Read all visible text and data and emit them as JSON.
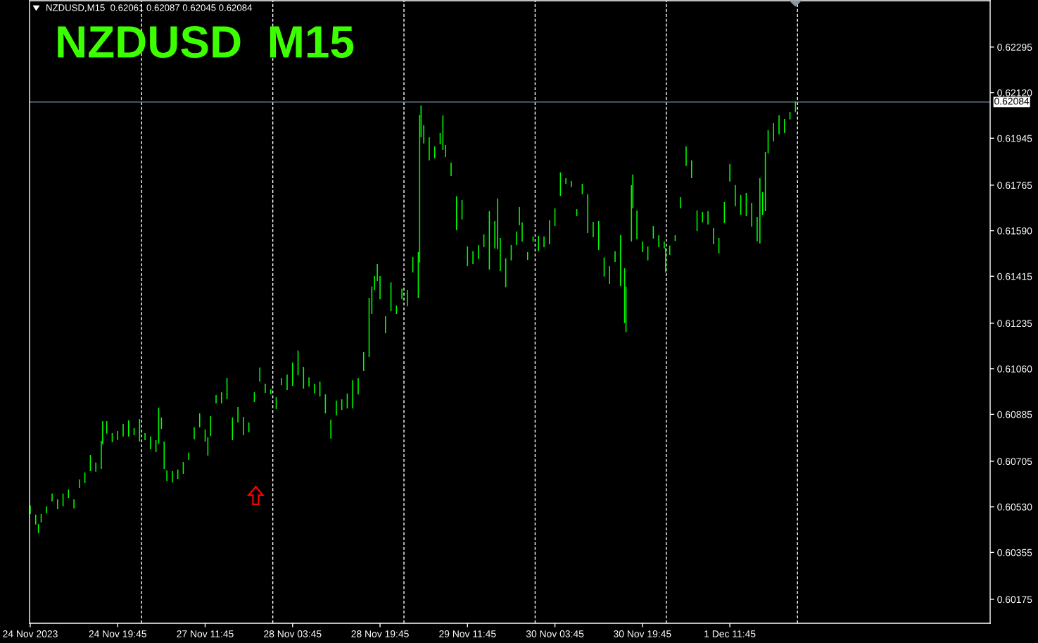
{
  "chart_data": {
    "type": "bar",
    "title": "NZDUSD  M15",
    "subtitle": "NZDUSD,M15  0.62061 0.62087 0.62045 0.62084",
    "color": "#00ff00",
    "categories": [
      "24 Nov 2023",
      null,
      null,
      null,
      null,
      null,
      null,
      null,
      null,
      null,
      null,
      null,
      null,
      null,
      null,
      null,
      null,
      null,
      null,
      null,
      null,
      null,
      null,
      null,
      null,
      null,
      null,
      null,
      null,
      null,
      null,
      null,
      null,
      null,
      null,
      null,
      null,
      null,
      null,
      null,
      null,
      null,
      null,
      null,
      null,
      null,
      null,
      null,
      null,
      null,
      null,
      null,
      null,
      null,
      null,
      null,
      null,
      null,
      null,
      null,
      null,
      null,
      null,
      null,
      "24 Nov 19:45",
      null,
      null,
      null,
      null,
      null,
      null,
      null,
      null,
      null,
      null,
      null,
      null,
      null,
      null,
      null,
      null,
      null,
      null,
      null,
      null,
      null,
      null,
      null,
      null,
      null,
      null,
      null,
      null,
      null,
      null,
      null,
      null,
      null,
      null,
      null,
      null,
      null,
      null,
      null,
      null,
      null,
      null,
      null,
      null,
      null,
      null,
      null,
      null,
      null,
      null,
      null,
      null,
      null,
      null,
      null,
      null,
      null,
      null,
      null,
      null,
      null,
      null,
      null,
      "27 Nov 11:45",
      null,
      null,
      null,
      null,
      null,
      null,
      null,
      null,
      null,
      null,
      null,
      null,
      null,
      null,
      null,
      null,
      null,
      null,
      null,
      null,
      null,
      null,
      null,
      null,
      null,
      null,
      null,
      null,
      null,
      null,
      null,
      null,
      null,
      null,
      null,
      null,
      null,
      null,
      null,
      null,
      null,
      null,
      null,
      null,
      null,
      null,
      null,
      null,
      null,
      null,
      null,
      null,
      null,
      null,
      null,
      null,
      null,
      null,
      null,
      null,
      null,
      null,
      null,
      "28 Nov 03:45",
      null,
      null,
      null,
      null,
      null,
      null,
      null,
      null,
      null,
      null,
      null,
      null,
      null,
      null,
      null,
      null,
      null,
      null,
      null,
      null,
      null,
      null,
      null,
      null,
      null,
      null,
      null,
      null,
      null,
      null,
      null,
      null,
      null,
      null,
      null,
      null,
      null,
      null,
      null,
      null,
      null,
      null,
      null,
      null,
      null,
      null,
      null,
      null,
      null,
      null,
      null,
      null,
      null,
      null,
      null,
      null,
      null,
      null,
      null,
      null,
      null,
      null,
      null,
      "28 Nov 19:45",
      null,
      null,
      null,
      null,
      null,
      null,
      null,
      null,
      null,
      null,
      null,
      null,
      null,
      null,
      null,
      null,
      null,
      null,
      null,
      null,
      null,
      null,
      null,
      null,
      null,
      null,
      null,
      null,
      null,
      null,
      null,
      null,
      null,
      null,
      null,
      null,
      null,
      null,
      null,
      null,
      null,
      null,
      null,
      null,
      null,
      null,
      null,
      null,
      null,
      null,
      null,
      null,
      null,
      null,
      null,
      null,
      null,
      null,
      null,
      null,
      null,
      null,
      null,
      "29 Nov 11:45",
      null,
      null,
      null,
      null,
      null,
      null,
      null,
      null,
      null,
      null,
      null,
      null,
      null,
      null,
      null,
      null,
      null,
      null,
      null,
      null,
      null,
      null,
      null,
      null,
      null,
      null,
      null,
      null,
      null,
      null,
      null,
      null,
      null,
      null,
      null,
      null,
      null,
      null,
      null,
      null,
      null,
      null,
      null,
      null,
      null,
      null,
      null,
      null,
      null,
      null,
      null,
      null,
      null,
      null,
      null,
      null,
      null,
      null,
      null,
      null,
      null,
      null,
      null,
      "30 Nov 03:45",
      null,
      null,
      null,
      null,
      null,
      null,
      null,
      null,
      null,
      null,
      null,
      null,
      null,
      null,
      null,
      null,
      null,
      null,
      null,
      null,
      null,
      null,
      null,
      null,
      null,
      null,
      null,
      null,
      null,
      null,
      null,
      null,
      null,
      null,
      null,
      null,
      null,
      null,
      null,
      null,
      null,
      null,
      null,
      null,
      null,
      null,
      null,
      null,
      null,
      null,
      null,
      null,
      null,
      null,
      null,
      null,
      null,
      null,
      null,
      null,
      null,
      null,
      null,
      "30 Nov 19:45",
      null,
      null,
      null,
      null,
      null,
      null,
      null,
      null,
      null,
      null,
      null,
      null,
      null,
      null,
      null,
      null,
      null,
      null,
      null,
      null,
      null,
      null,
      null,
      null,
      null,
      null,
      null,
      null,
      null,
      null,
      null,
      null,
      null,
      null,
      null,
      null,
      null,
      null,
      null,
      null,
      null,
      null,
      null,
      null,
      null,
      null,
      null,
      null,
      null,
      null,
      null,
      null,
      null,
      null,
      null,
      null,
      null,
      null,
      null,
      null,
      null,
      null,
      null,
      "1 Dec 11:45",
      null,
      null,
      null,
      null,
      null,
      null,
      null,
      null,
      null,
      null,
      null,
      null,
      null,
      null,
      null,
      null,
      null,
      null,
      null,
      null,
      null,
      null,
      null,
      null,
      null,
      null,
      null,
      null,
      null,
      null,
      null,
      null,
      null,
      null,
      null,
      null,
      null,
      null,
      null,
      null,
      null,
      null,
      null,
      null,
      null,
      null,
      null,
      null,
      null,
      null,
      null,
      null,
      null,
      null,
      null,
      null,
      null,
      null,
      null,
      null,
      null,
      null,
      null,
      null,
      null,
      null,
      null,
      null,
      null,
      null,
      null,
      null,
      null,
      null,
      null,
      null,
      null,
      null,
      null,
      null,
      null,
      null,
      null,
      null,
      null,
      null,
      null,
      null,
      null,
      null,
      null,
      null,
      null,
      null,
      null,
      null,
      null,
      null,
      null,
      null,
      null,
      null,
      null,
      null,
      null,
      null,
      null,
      null,
      null,
      null,
      null,
      null,
      null,
      null,
      null,
      null,
      null,
      null,
      null,
      null,
      null,
      null,
      null,
      null,
      null,
      null,
      null,
      null,
      null,
      null,
      null,
      null,
      null,
      null,
      null,
      null,
      null,
      null,
      null,
      null,
      null,
      null,
      null,
      null,
      null,
      null,
      null,
      null,
      null,
      null,
      null,
      null,
      null,
      null,
      null,
      null,
      null,
      null,
      null,
      null,
      null,
      null,
      null,
      null,
      null,
      null,
      null,
      null,
      null,
      null,
      null,
      null,
      null,
      null,
      null,
      null,
      null,
      null,
      null,
      null,
      null,
      null,
      null,
      null,
      null,
      null,
      null,
      null,
      null,
      null
    ],
    "base": [
      0.60502,
      null,
      null,
      null,
      0.60462,
      null,
      0.60429,
      null,
      0.6047,
      null,
      null,
      null,
      0.60505,
      null,
      null,
      null,
      0.60551,
      null,
      null,
      null,
      0.60521,
      null,
      null,
      null,
      0.60532,
      null,
      null,
      null,
      0.60564,
      null,
      null,
      null,
      0.60524,
      null,
      null,
      null,
      0.60602,
      null,
      null,
      null,
      0.60621,
      null,
      null,
      null,
      0.60667,
      null,
      null,
      null,
      0.60665,
      null,
      null,
      null,
      0.60675,
      0.6077,
      null,
      null,
      0.60811,
      null,
      null,
      null,
      0.60778,
      null,
      null,
      null,
      0.60786,
      null,
      null,
      null,
      0.608,
      null,
      null,
      null,
      0.608,
      null,
      null,
      null,
      0.60805,
      null,
      null,
      null,
      0.60781,
      null,
      null,
      null,
      0.60786,
      null,
      null,
      null,
      0.60751,
      null,
      null,
      null,
      0.6074,
      null,
      0.60773,
      null,
      0.60829,
      null,
      0.60675,
      null,
      0.60629,
      null,
      null,
      null,
      0.60624,
      null,
      null,
      null,
      0.60637,
      null,
      null,
      null,
      0.60656,
      null,
      null,
      null,
      0.6071,
      null,
      null,
      null,
      0.60789,
      null,
      null,
      null,
      0.60835,
      null,
      null,
      null,
      0.60781,
      null,
      0.60727,
      null,
      0.60802,
      null,
      null,
      null,
      0.60927,
      null,
      null,
      null,
      0.60927,
      null,
      null,
      null,
      0.60943,
      null,
      null,
      null,
      0.60786,
      null,
      null,
      null,
      0.60854,
      null,
      null,
      null,
      0.60805,
      null,
      null,
      null,
      0.60816,
      null,
      null,
      null,
      0.60932,
      null,
      null,
      null,
      0.61011,
      null,
      null,
      null,
      0.60967,
      null,
      null,
      null,
      0.60962,
      null,
      null,
      null,
      0.60905,
      null,
      null,
      null,
      0.60997,
      null,
      null,
      null,
      0.60978,
      null,
      null,
      null,
      0.60994,
      null,
      null,
      null,
      0.61035,
      null,
      null,
      null,
      0.60984,
      null,
      null,
      null,
      0.60992,
      null,
      null,
      null,
      0.60965,
      null,
      null,
      null,
      0.60954,
      null,
      null,
      null,
      0.60889,
      null,
      null,
      null,
      0.60792,
      null,
      null,
      null,
      0.60881,
      null,
      null,
      null,
      0.60902,
      null,
      null,
      null,
      0.60908,
      null,
      null,
      null,
      0.60908,
      null,
      null,
      null,
      0.60962,
      null,
      null,
      null,
      0.61051,
      null,
      null,
      null,
      0.61105,
      null,
      0.6127,
      null,
      0.61362,
      null,
      0.61397,
      null,
      0.61327,
      null,
      null,
      null,
      0.61197,
      null,
      null,
      null,
      0.61281,
      null,
      null,
      null,
      0.6127,
      null,
      null,
      null,
      0.61327,
      null,
      null,
      null,
      0.613,
      null,
      null,
      null,
      0.6143,
      null,
      null,
      null,
      0.61332,
      0.61468,
      0.61949,
      null,
      0.61925,
      null,
      null,
      null,
      0.6186,
      null,
      null,
      null,
      0.61868,
      null,
      null,
      null,
      0.61922,
      null,
      0.619,
      null,
      0.61873,
      null,
      null,
      null,
      0.618,
      null,
      null,
      null,
      0.61592,
      null,
      null,
      null,
      0.61633,
      null,
      null,
      null,
      0.61454,
      null,
      null,
      null,
      0.61462,
      null,
      null,
      null,
      0.61481,
      null,
      null,
      null,
      0.61527,
      null,
      null,
      null,
      0.61441,
      null,
      null,
      null,
      0.61522,
      null,
      0.61519,
      null,
      0.61435,
      null,
      null,
      null,
      0.61373,
      null,
      null,
      null,
      0.61476,
      null,
      null,
      null,
      0.61535,
      null,
      0.61611,
      null,
      0.61549,
      null,
      null,
      null,
      0.61478,
      null,
      null,
      null,
      0.61549,
      null,
      null,
      null,
      0.61511,
      null,
      null,
      null,
      0.61527,
      null,
      null,
      null,
      0.61538,
      null,
      null,
      null,
      0.61608,
      null,
      null,
      null,
      0.61724,
      null,
      null,
      null,
      0.6177,
      null,
      null,
      null,
      0.61757,
      null,
      null,
      null,
      0.61646,
      null,
      null,
      null,
      0.6173,
      null,
      null,
      null,
      0.61581,
      null,
      null,
      null,
      0.61565,
      null,
      null,
      null,
      0.61516,
      null,
      null,
      null,
      0.61414,
      null,
      null,
      null,
      0.61386,
      null,
      null,
      null,
      0.6147,
      null,
      null,
      null,
      0.61378,
      null,
      null,
      0.61235,
      0.612,
      null,
      null,
      null,
      0.61549,
      0.61676,
      null,
      null,
      0.61557,
      null,
      null,
      null,
      0.61508,
      null,
      null,
      null,
      0.61476,
      null,
      null,
      null,
      0.6156,
      null,
      null,
      null,
      0.61527,
      null,
      null,
      null,
      0.61522,
      0.6143,
      null,
      null,
      0.61497,
      null,
      null,
      null,
      0.61551,
      null,
      null,
      null,
      0.61676,
      null,
      null,
      null,
      0.61838,
      null,
      null,
      null,
      0.61792,
      null,
      null,
      null,
      0.61589,
      null,
      null,
      null,
      0.61622,
      null,
      null,
      null,
      0.61614,
      null,
      null,
      null,
      0.61538,
      null,
      null,
      null,
      0.61503,
      null,
      null,
      null,
      0.61619,
      null,
      null,
      null,
      0.61779,
      null,
      null,
      null,
      0.61684,
      null,
      null,
      null,
      0.61651,
      null,
      null,
      null,
      0.61646,
      null,
      null,
      null,
      0.61606,
      null,
      null,
      null,
      0.61549,
      null,
      0.61541,
      null,
      0.61651,
      null,
      0.61665,
      null,
      0.61887,
      null,
      null,
      null,
      0.61933,
      null,
      null,
      null,
      0.6196,
      null,
      null,
      null,
      0.61965,
      null,
      null,
      null,
      0.62017,
      null,
      null,
      null,
      0.62045,
      null,
      null,
      null,
      null,
      null,
      null,
      null,
      null,
      null,
      null,
      null,
      null,
      null,
      null,
      null,
      null,
      null,
      null,
      null,
      null,
      null,
      null,
      null,
      null,
      null,
      null,
      null,
      null,
      null,
      null,
      null,
      null,
      null,
      null,
      null,
      null,
      null,
      null,
      null,
      null,
      null,
      null,
      null,
      null,
      null,
      null,
      null,
      null,
      null,
      null,
      null,
      null,
      null,
      null,
      null,
      null,
      null,
      null,
      null,
      null,
      null,
      null,
      null,
      null,
      null,
      null,
      null,
      null,
      null,
      null,
      null,
      null,
      null,
      null,
      null,
      null,
      null,
      null,
      null,
      null,
      null,
      null,
      null,
      null,
      null,
      null,
      null,
      null,
      null,
      null,
      null,
      null,
      null,
      null,
      null,
      null,
      null,
      null,
      null,
      null,
      null,
      null,
      null,
      null,
      null,
      null,
      null,
      null,
      null,
      null,
      null,
      null,
      null,
      null,
      null,
      null,
      null,
      null,
      null,
      null,
      null,
      null,
      null,
      null,
      null,
      null,
      null,
      null,
      null,
      null,
      null,
      null,
      null,
      null,
      null,
      null,
      null,
      null,
      null,
      null,
      null,
      null
    ],
    "values": [
      0.00033,
      null,
      null,
      null,
      0.00038,
      null,
      0.00035,
      null,
      0.00032,
      null,
      null,
      null,
      0.00027,
      null,
      null,
      null,
      0.0003,
      null,
      null,
      null,
      0.00038,
      null,
      null,
      null,
      0.00049,
      null,
      null,
      null,
      0.00033,
      null,
      null,
      null,
      0.00035,
      null,
      null,
      null,
      0.00033,
      null,
      null,
      null,
      0.00041,
      null,
      null,
      null,
      0.00062,
      null,
      null,
      null,
      0.00035,
      null,
      null,
      null,
      0.00109,
      0.00089,
      null,
      null,
      0.00048,
      null,
      null,
      null,
      0.00035,
      null,
      null,
      null,
      0.00035,
      null,
      null,
      null,
      0.00048,
      null,
      null,
      null,
      0.00062,
      null,
      null,
      null,
      0.00027,
      null,
      null,
      null,
      0.00086,
      null,
      null,
      null,
      0.00027,
      null,
      null,
      null,
      0.00049,
      null,
      null,
      null,
      0.00046,
      null,
      0.00138,
      null,
      0.00044,
      null,
      0.00106,
      null,
      0.00041,
      null,
      null,
      null,
      0.00043,
      null,
      null,
      null,
      0.00036,
      null,
      null,
      null,
      0.00046,
      null,
      null,
      null,
      0.00028,
      null,
      null,
      null,
      0.00046,
      null,
      null,
      null,
      0.00054,
      null,
      null,
      null,
      0.00046,
      null,
      0.0007,
      null,
      0.00076,
      null,
      null,
      null,
      0.00032,
      null,
      null,
      null,
      0.00043,
      null,
      null,
      null,
      0.00081,
      null,
      null,
      null,
      0.00087,
      null,
      null,
      null,
      0.00059,
      null,
      null,
      null,
      0.0007,
      null,
      null,
      null,
      0.00038,
      null,
      null,
      null,
      0.00038,
      null,
      null,
      null,
      0.00054,
      null,
      null,
      null,
      0.00036,
      null,
      null,
      null,
      0.00019,
      null,
      null,
      null,
      0.00046,
      null,
      null,
      null,
      0.00027,
      null,
      null,
      null,
      0.0006,
      null,
      null,
      null,
      0.0009,
      null,
      null,
      null,
      0.00095,
      null,
      null,
      null,
      0.00083,
      null,
      null,
      null,
      0.00035,
      null,
      null,
      null,
      0.00038,
      null,
      null,
      null,
      0.00057,
      null,
      null,
      null,
      0.00073,
      null,
      null,
      null,
      0.00073,
      null,
      null,
      null,
      0.00057,
      null,
      null,
      null,
      0.00041,
      null,
      null,
      null,
      0.00057,
      null,
      null,
      null,
      0.00108,
      null,
      null,
      null,
      0.00062,
      null,
      null,
      null,
      0.00073,
      null,
      null,
      null,
      0.00227,
      null,
      0.00106,
      null,
      0.00054,
      null,
      0.00065,
      null,
      0.00089,
      null,
      null,
      null,
      0.00065,
      null,
      null,
      null,
      0.00111,
      null,
      null,
      null,
      0.00033,
      null,
      null,
      null,
      0.00041,
      null,
      null,
      null,
      0.00062,
      null,
      null,
      null,
      0.00059,
      null,
      null,
      null,
      0.00176,
      0.00567,
      0.00122,
      null,
      0.0007,
      null,
      null,
      null,
      0.00089,
      null,
      null,
      null,
      0.00046,
      null,
      null,
      null,
      0.00043,
      null,
      0.00133,
      null,
      0.00046,
      null,
      null,
      null,
      0.00052,
      null,
      null,
      null,
      0.0013,
      null,
      null,
      null,
      0.00075,
      null,
      null,
      null,
      0.00076,
      null,
      null,
      null,
      0.00049,
      null,
      null,
      null,
      0.00054,
      null,
      null,
      null,
      0.00049,
      null,
      null,
      null,
      0.00224,
      null,
      null,
      null,
      0.00105,
      null,
      0.00195,
      null,
      0.00127,
      null,
      null,
      null,
      0.00111,
      null,
      null,
      null,
      0.00059,
      null,
      null,
      null,
      0.00052,
      null,
      0.0007,
      null,
      0.00073,
      null,
      null,
      null,
      0.0003,
      null,
      null,
      null,
      0.00019,
      null,
      null,
      null,
      0.00059,
      null,
      null,
      null,
      0.00041,
      null,
      null,
      null,
      0.00092,
      null,
      null,
      null,
      0.00068,
      null,
      null,
      null,
      0.0009,
      null,
      null,
      null,
      0.00022,
      null,
      null,
      null,
      0.00024,
      null,
      null,
      null,
      0.00027,
      null,
      null,
      null,
      0.0004,
      null,
      null,
      null,
      0.00149,
      null,
      null,
      null,
      0.00059,
      null,
      null,
      null,
      0.00111,
      null,
      null,
      null,
      0.00073,
      null,
      null,
      null,
      0.00068,
      null,
      null,
      null,
      0.00041,
      null,
      null,
      null,
      0.00195,
      null,
      null,
      0.00211,
      0.00176,
      null,
      null,
      null,
      0.00216,
      0.0013,
      null,
      null,
      0.00111,
      null,
      null,
      null,
      0.00041,
      null,
      null,
      null,
      0.00054,
      null,
      null,
      null,
      0.00048,
      null,
      null,
      null,
      0.00046,
      null,
      null,
      null,
      0.00027,
      0.00094,
      null,
      null,
      0.00036,
      null,
      null,
      null,
      0.00022,
      null,
      null,
      null,
      0.00043,
      null,
      null,
      null,
      0.00076,
      null,
      null,
      null,
      0.00068,
      null,
      null,
      null,
      0.00079,
      null,
      null,
      null,
      0.0004,
      null,
      null,
      null,
      0.00051,
      null,
      null,
      null,
      0.00062,
      null,
      null,
      null,
      0.00059,
      null,
      null,
      null,
      0.00081,
      null,
      null,
      null,
      0.00067,
      null,
      null,
      null,
      0.00081,
      null,
      null,
      null,
      0.00076,
      null,
      null,
      null,
      0.00089,
      null,
      null,
      null,
      0.00091,
      null,
      null,
      null,
      0.00094,
      null,
      0.00251,
      null,
      0.00087,
      null,
      0.00227,
      null,
      0.00089,
      null,
      null,
      null,
      0.0007,
      null,
      null,
      null,
      0.00073,
      null,
      null,
      null,
      0.00054,
      null,
      null,
      null,
      0.00029,
      null,
      null,
      null,
      0.00042,
      null,
      null,
      null,
      null,
      null,
      null,
      null,
      null,
      null,
      null,
      null,
      null,
      null,
      null,
      null,
      null,
      null,
      null,
      null,
      null,
      null,
      null,
      null,
      null,
      null,
      null,
      null,
      null,
      null,
      null,
      null,
      null,
      null,
      null,
      null,
      null,
      null,
      null,
      null,
      null,
      null,
      null,
      null,
      null,
      null,
      null,
      null,
      null,
      null,
      null,
      null,
      null,
      null,
      null,
      null,
      null,
      null,
      null,
      null,
      null,
      null,
      null,
      null,
      null,
      null,
      null,
      null,
      null,
      null,
      null,
      null,
      null,
      null,
      null,
      null,
      null,
      null,
      null,
      null,
      null,
      null,
      null,
      null,
      null,
      null,
      null,
      null,
      null,
      null,
      null,
      null,
      null,
      null,
      null,
      null,
      null,
      null,
      null,
      null,
      null,
      null,
      null,
      null,
      null,
      null,
      null,
      null,
      null,
      null,
      null,
      null,
      null,
      null,
      null,
      null,
      null,
      null,
      null,
      null,
      null,
      null,
      null,
      null,
      null,
      null,
      null,
      null,
      null,
      null,
      null,
      null,
      null,
      null,
      null,
      null,
      null,
      null,
      null,
      null,
      null,
      null,
      null
    ],
    "ylim": [
      0.60083,
      0.62473
    ],
    "yticks": [
      0.62295,
      {
        "value": 0.6212,
        "label": "0.62120"
      },
      0.61945,
      0.61765,
      {
        "value": 0.6159,
        "label": "0.61590"
      },
      0.61415,
      0.61235,
      {
        "value": 0.6106,
        "label": "0.61060"
      },
      0.60885,
      0.60705,
      {
        "value": 0.6053,
        "label": "0.60530"
      },
      0.60355,
      0.60175
    ],
    "ref_lines": [
      {
        "axis": "y",
        "value": 0.62084,
        "label": "0.62084",
        "line_style": "solid",
        "color": "#778899"
      }
    ]
  }
}
